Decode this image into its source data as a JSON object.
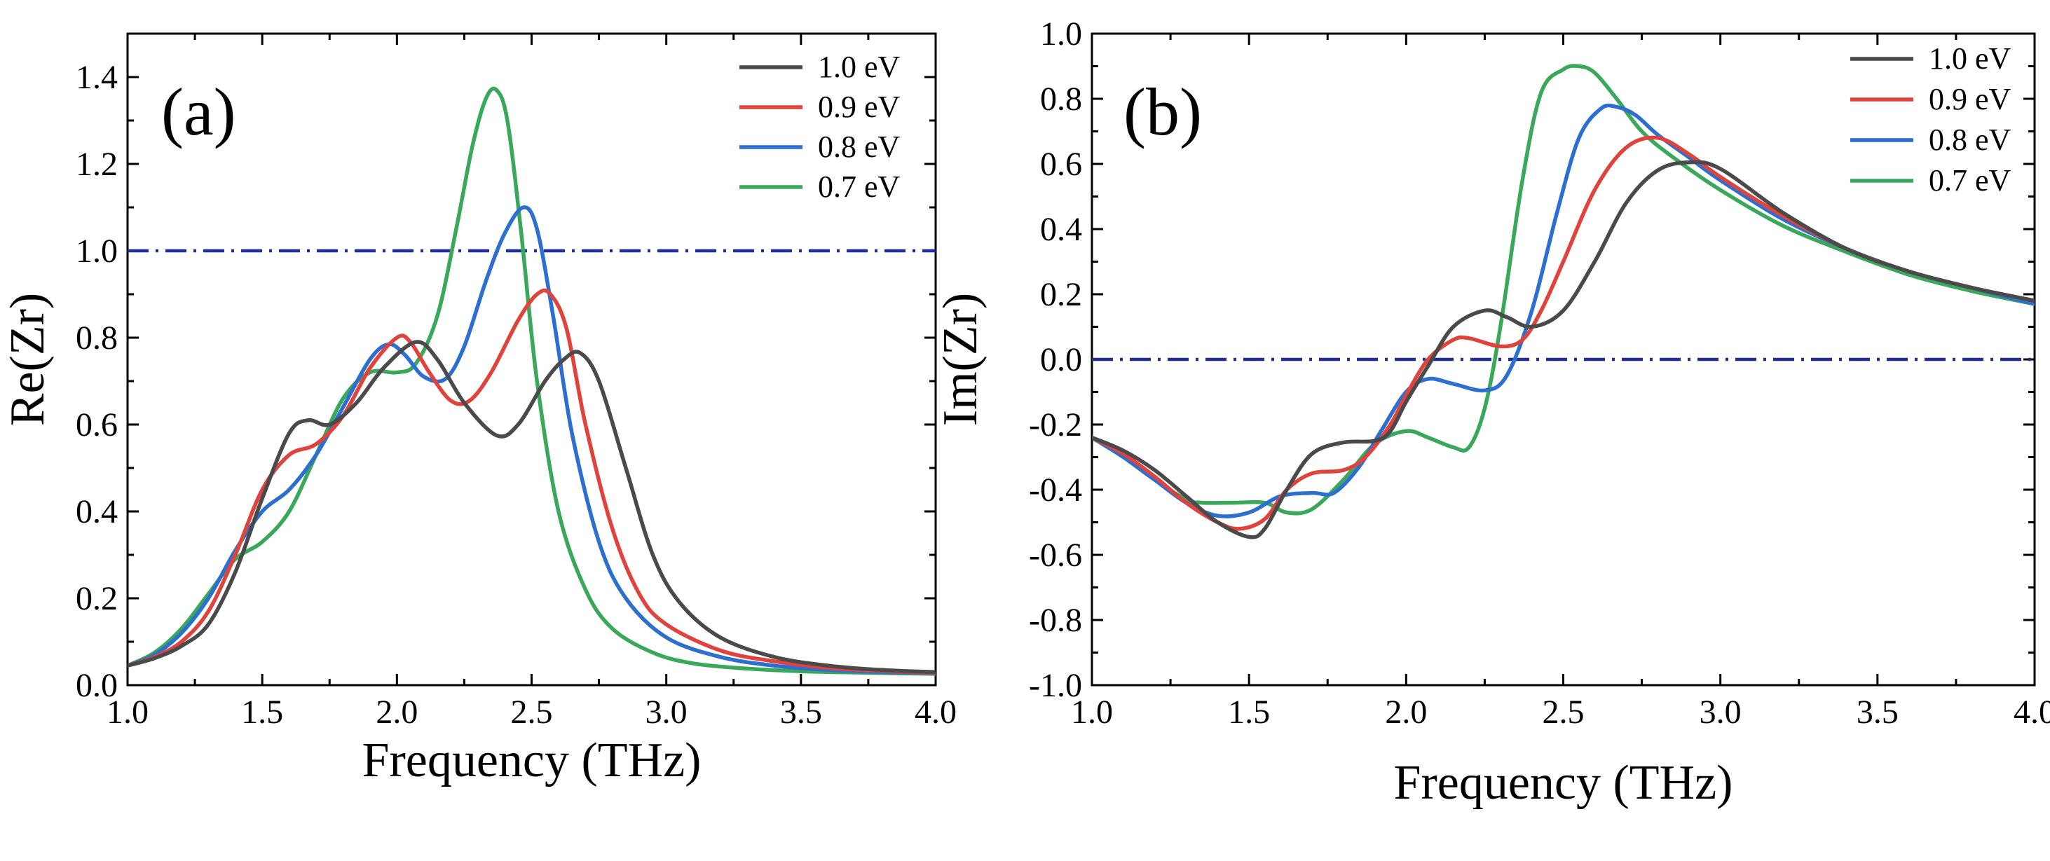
{
  "chart_data": [
    {
      "type": "line",
      "panel_label": "(a)",
      "xlabel": "Frequency (THz)",
      "ylabel": "Re(Zr)",
      "xlim": [
        1.0,
        4.0
      ],
      "ylim": [
        0.0,
        1.5
      ],
      "xticks": [
        1.0,
        1.5,
        2.0,
        2.5,
        3.0,
        3.5,
        4.0
      ],
      "xtick_labels": [
        "1.0",
        "1.5",
        "2.0",
        "2.5",
        "3.0",
        "3.5",
        "4.0"
      ],
      "yticks": [
        0.0,
        0.2,
        0.4,
        0.6,
        0.8,
        1.0,
        1.2,
        1.4
      ],
      "ytick_labels": [
        "0.0",
        "0.2",
        "0.4",
        "0.6",
        "0.8",
        "1.0",
        "1.2",
        "1.4"
      ],
      "reference_line": {
        "y": 1.0,
        "color": "#1f2f96",
        "style": "dash-dot"
      },
      "legend_position": "top-right",
      "series": [
        {
          "name": "1.0 eV",
          "color": "#4a4a4a",
          "x": [
            1.0,
            1.1,
            1.2,
            1.3,
            1.4,
            1.5,
            1.6,
            1.67,
            1.75,
            1.85,
            1.95,
            2.07,
            2.15,
            2.25,
            2.37,
            2.45,
            2.55,
            2.62,
            2.68,
            2.75,
            2.85,
            2.95,
            3.05,
            3.2,
            3.4,
            3.6,
            3.8,
            4.0
          ],
          "y": [
            0.045,
            0.062,
            0.09,
            0.14,
            0.26,
            0.43,
            0.58,
            0.61,
            0.6,
            0.65,
            0.73,
            0.79,
            0.75,
            0.65,
            0.575,
            0.6,
            0.7,
            0.75,
            0.765,
            0.7,
            0.5,
            0.3,
            0.19,
            0.11,
            0.065,
            0.045,
            0.035,
            0.03
          ]
        },
        {
          "name": "0.9 eV",
          "color": "#e0433c",
          "x": [
            1.0,
            1.1,
            1.2,
            1.3,
            1.4,
            1.5,
            1.6,
            1.7,
            1.8,
            1.9,
            2.0,
            2.05,
            2.12,
            2.2,
            2.27,
            2.35,
            2.45,
            2.52,
            2.57,
            2.63,
            2.7,
            2.8,
            2.9,
            3.0,
            3.2,
            3.4,
            3.6,
            3.8,
            4.0
          ],
          "y": [
            0.045,
            0.065,
            0.1,
            0.17,
            0.3,
            0.45,
            0.53,
            0.555,
            0.62,
            0.73,
            0.8,
            0.79,
            0.72,
            0.655,
            0.655,
            0.72,
            0.84,
            0.9,
            0.9,
            0.82,
            0.6,
            0.36,
            0.21,
            0.14,
            0.08,
            0.055,
            0.04,
            0.033,
            0.028
          ]
        },
        {
          "name": "0.8 eV",
          "color": "#2c6fd1",
          "x": [
            1.0,
            1.1,
            1.2,
            1.3,
            1.4,
            1.5,
            1.6,
            1.7,
            1.8,
            1.9,
            1.97,
            2.03,
            2.1,
            2.18,
            2.25,
            2.33,
            2.4,
            2.47,
            2.52,
            2.58,
            2.65,
            2.75,
            2.85,
            3.0,
            3.2,
            3.4,
            3.6,
            3.8,
            4.0
          ],
          "y": [
            0.045,
            0.07,
            0.12,
            0.2,
            0.31,
            0.4,
            0.45,
            0.53,
            0.64,
            0.75,
            0.785,
            0.76,
            0.71,
            0.705,
            0.78,
            0.93,
            1.04,
            1.1,
            1.05,
            0.85,
            0.58,
            0.33,
            0.2,
            0.11,
            0.065,
            0.045,
            0.035,
            0.03,
            0.027
          ]
        },
        {
          "name": "0.7 eV",
          "color": "#3aa85b",
          "x": [
            1.0,
            1.1,
            1.2,
            1.3,
            1.4,
            1.5,
            1.6,
            1.7,
            1.8,
            1.9,
            2.0,
            2.07,
            2.15,
            2.22,
            2.28,
            2.33,
            2.37,
            2.41,
            2.46,
            2.52,
            2.6,
            2.7,
            2.8,
            2.95,
            3.1,
            3.3,
            3.5,
            3.7,
            4.0
          ],
          "y": [
            0.045,
            0.075,
            0.13,
            0.21,
            0.29,
            0.33,
            0.4,
            0.53,
            0.66,
            0.72,
            0.72,
            0.74,
            0.85,
            1.05,
            1.24,
            1.35,
            1.37,
            1.3,
            1.05,
            0.7,
            0.4,
            0.22,
            0.13,
            0.075,
            0.05,
            0.038,
            0.032,
            0.029,
            0.026
          ]
        }
      ],
      "legend": [
        "1.0 eV",
        "0.9 eV",
        "0.8 eV",
        "0.7 eV"
      ]
    },
    {
      "type": "line",
      "panel_label": "(b)",
      "xlabel": "Frequency (THz)",
      "ylabel": "Im(Zr)",
      "xlim": [
        1.0,
        4.0
      ],
      "ylim": [
        -1.0,
        1.0
      ],
      "xticks": [
        1.0,
        1.5,
        2.0,
        2.5,
        3.0,
        3.5,
        4.0
      ],
      "xtick_labels": [
        "1.0",
        "1.5",
        "2.0",
        "2.5",
        "3.0",
        "3.5",
        "4.0"
      ],
      "yticks": [
        -1.0,
        -0.8,
        -0.6,
        -0.4,
        -0.2,
        0.0,
        0.2,
        0.4,
        0.6,
        0.8,
        1.0
      ],
      "ytick_labels": [
        "-1.0",
        "-0.8",
        "-0.6",
        "-0.4",
        "-0.2",
        "0.0",
        "0.2",
        "0.4",
        "0.6",
        "0.8",
        "1.0"
      ],
      "reference_line": {
        "y": 0.0,
        "color": "#1f2f96",
        "style": "dash-dot"
      },
      "legend_position": "top-right",
      "series": [
        {
          "name": "1.0 eV",
          "color": "#4a4a4a",
          "x": [
            1.0,
            1.1,
            1.2,
            1.3,
            1.4,
            1.5,
            1.55,
            1.62,
            1.7,
            1.8,
            1.9,
            1.95,
            2.0,
            2.07,
            2.15,
            2.25,
            2.32,
            2.4,
            2.5,
            2.6,
            2.7,
            2.8,
            2.9,
            3.0,
            3.2,
            3.4,
            3.6,
            3.8,
            4.0
          ],
          "y": [
            -0.24,
            -0.28,
            -0.34,
            -0.42,
            -0.5,
            -0.545,
            -0.52,
            -0.4,
            -0.29,
            -0.255,
            -0.25,
            -0.22,
            -0.13,
            -0.02,
            0.1,
            0.15,
            0.13,
            0.1,
            0.15,
            0.3,
            0.48,
            0.58,
            0.605,
            0.585,
            0.45,
            0.34,
            0.27,
            0.22,
            0.18
          ]
        },
        {
          "name": "0.9 eV",
          "color": "#e0433c",
          "x": [
            1.0,
            1.1,
            1.2,
            1.3,
            1.4,
            1.47,
            1.55,
            1.62,
            1.7,
            1.8,
            1.87,
            1.95,
            2.0,
            2.07,
            2.15,
            2.2,
            2.3,
            2.37,
            2.43,
            2.5,
            2.6,
            2.7,
            2.8,
            2.9,
            3.0,
            3.2,
            3.4,
            3.6,
            3.8,
            4.0
          ],
          "y": [
            -0.24,
            -0.29,
            -0.36,
            -0.44,
            -0.5,
            -0.52,
            -0.49,
            -0.4,
            -0.35,
            -0.34,
            -0.3,
            -0.2,
            -0.11,
            0.0,
            0.06,
            0.065,
            0.04,
            0.06,
            0.15,
            0.3,
            0.52,
            0.65,
            0.68,
            0.63,
            0.56,
            0.44,
            0.34,
            0.27,
            0.22,
            0.18
          ]
        },
        {
          "name": "0.8 eV",
          "color": "#2c6fd1",
          "x": [
            1.0,
            1.1,
            1.2,
            1.3,
            1.4,
            1.5,
            1.6,
            1.7,
            1.77,
            1.85,
            1.92,
            2.0,
            2.07,
            2.15,
            2.25,
            2.32,
            2.4,
            2.48,
            2.55,
            2.62,
            2.67,
            2.73,
            2.8,
            2.9,
            3.0,
            3.2,
            3.4,
            3.6,
            3.8,
            4.0
          ],
          "y": [
            -0.24,
            -0.3,
            -0.37,
            -0.44,
            -0.48,
            -0.47,
            -0.42,
            -0.41,
            -0.41,
            -0.33,
            -0.22,
            -0.1,
            -0.06,
            -0.075,
            -0.095,
            -0.05,
            0.15,
            0.45,
            0.68,
            0.77,
            0.775,
            0.75,
            0.69,
            0.62,
            0.55,
            0.43,
            0.34,
            0.27,
            0.22,
            0.17
          ]
        },
        {
          "name": "0.7 eV",
          "color": "#3aa85b",
          "x": [
            1.0,
            1.1,
            1.2,
            1.3,
            1.35,
            1.45,
            1.55,
            1.62,
            1.7,
            1.8,
            1.9,
            2.0,
            2.07,
            2.15,
            2.2,
            2.25,
            2.3,
            2.37,
            2.43,
            2.5,
            2.55,
            2.6,
            2.67,
            2.75,
            2.85,
            3.0,
            3.2,
            3.4,
            3.6,
            3.8,
            4.0
          ],
          "y": [
            -0.24,
            -0.3,
            -0.37,
            -0.43,
            -0.44,
            -0.44,
            -0.44,
            -0.47,
            -0.46,
            -0.37,
            -0.26,
            -0.22,
            -0.24,
            -0.27,
            -0.27,
            -0.15,
            0.1,
            0.55,
            0.82,
            0.89,
            0.9,
            0.88,
            0.8,
            0.7,
            0.62,
            0.52,
            0.41,
            0.33,
            0.26,
            0.21,
            0.17
          ]
        }
      ],
      "legend": [
        "1.0 eV",
        "0.9 eV",
        "0.8 eV",
        "0.7 eV"
      ]
    }
  ]
}
